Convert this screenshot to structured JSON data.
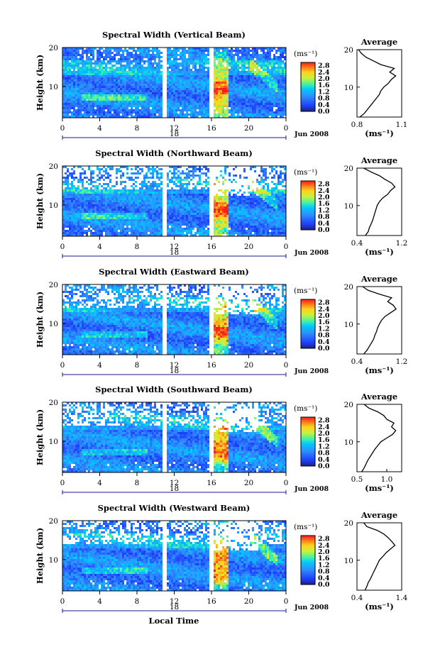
{
  "figure": {
    "y_label": "Height (km)",
    "x_label": "Local Time",
    "x_ticks": [
      "0",
      "4",
      "8",
      "12",
      "16",
      "20",
      "0"
    ],
    "y_ticks": [
      "20",
      "10"
    ],
    "date_label": "Jun 2008",
    "colorbar_unit": "(ms⁻¹)",
    "colorbar_ticks": [
      "2.8",
      "2.4",
      "2.0",
      "1.6",
      "1.2",
      "0.8",
      "0.4",
      "0.0"
    ],
    "avg_title": "Average",
    "avg_unit": "(ms⁻¹)"
  },
  "chart_data": [
    {
      "type": "heatmap",
      "title": "Spectral Width (Vertical Beam)",
      "xlabel": "",
      "ylabel": "Height (km)",
      "day_label": "18",
      "xlim": [
        0,
        24
      ],
      "ylim": [
        2,
        20
      ],
      "colorbar": {
        "label": "(ms⁻¹)",
        "range": [
          0.0,
          3.0
        ]
      },
      "average_profile": {
        "title": "Average",
        "xlabel": "(ms⁻¹)",
        "x_ticks": [
          "0.8",
          "1.1"
        ],
        "xlim": [
          0.8,
          1.1
        ],
        "height": [
          2,
          3,
          4,
          5,
          6,
          7,
          8,
          9,
          10,
          11,
          12,
          13,
          14,
          15,
          16,
          17,
          18,
          19,
          20
        ],
        "width": [
          0.82,
          0.85,
          0.87,
          0.89,
          0.91,
          0.93,
          0.95,
          0.96,
          0.98,
          1.01,
          1.03,
          1.06,
          1.02,
          1.05,
          0.96,
          0.91,
          0.86,
          0.83,
          0.81
        ]
      }
    },
    {
      "type": "heatmap",
      "title": "Spectral Width (Northward Beam)",
      "xlabel": "",
      "ylabel": "Height (km)",
      "day_label": "18",
      "xlim": [
        0,
        24
      ],
      "ylim": [
        2,
        20
      ],
      "colorbar": {
        "label": "(ms⁻¹)",
        "range": [
          0.0,
          3.0
        ]
      },
      "average_profile": {
        "title": "Average",
        "xlabel": "(ms⁻¹)",
        "x_ticks": [
          "0.4",
          "1.2"
        ],
        "xlim": [
          0.4,
          1.2
        ],
        "height": [
          2,
          3,
          4,
          5,
          6,
          7,
          8,
          9,
          10,
          11,
          12,
          13,
          14,
          15,
          16,
          17,
          18,
          19,
          20
        ],
        "width": [
          0.55,
          0.6,
          0.62,
          0.65,
          0.68,
          0.7,
          0.72,
          0.74,
          0.76,
          0.8,
          0.86,
          0.95,
          1.0,
          1.08,
          1.02,
          0.9,
          0.8,
          0.65,
          0.52
        ]
      }
    },
    {
      "type": "heatmap",
      "title": "Spectral Width (Eastward Beam)",
      "xlabel": "",
      "ylabel": "Height (km)",
      "day_label": "18",
      "xlim": [
        0,
        24
      ],
      "ylim": [
        2,
        20
      ],
      "colorbar": {
        "label": "(ms⁻¹)",
        "range": [
          0.0,
          3.0
        ]
      },
      "average_profile": {
        "title": "Average",
        "xlabel": "(ms⁻¹)",
        "x_ticks": [
          "0.4",
          "1.2"
        ],
        "xlim": [
          0.4,
          1.2
        ],
        "height": [
          2,
          3,
          4,
          5,
          6,
          7,
          8,
          9,
          10,
          11,
          12,
          13,
          14,
          15,
          16,
          17,
          18,
          19,
          20
        ],
        "width": [
          0.52,
          0.58,
          0.62,
          0.66,
          0.7,
          0.72,
          0.75,
          0.77,
          0.8,
          0.84,
          0.9,
          1.0,
          1.1,
          1.05,
          0.95,
          1.02,
          0.8,
          0.6,
          0.5
        ]
      }
    },
    {
      "type": "heatmap",
      "title": "Spectral Width (Southward Beam)",
      "xlabel": "",
      "ylabel": "Height (km)",
      "day_label": "18",
      "xlim": [
        0,
        24
      ],
      "ylim": [
        2,
        20
      ],
      "colorbar": {
        "label": "(ms⁻¹)",
        "range": [
          0.0,
          3.0
        ]
      },
      "average_profile": {
        "title": "Average",
        "xlabel": "(ms⁻¹)",
        "x_ticks": [
          "0.5",
          "1.0"
        ],
        "xlim": [
          0.5,
          1.25
        ],
        "height": [
          2,
          3,
          4,
          5,
          6,
          7,
          8,
          9,
          10,
          11,
          12,
          13,
          14,
          15,
          16,
          17,
          18,
          19,
          20
        ],
        "width": [
          0.58,
          0.62,
          0.65,
          0.68,
          0.72,
          0.76,
          0.8,
          0.85,
          0.9,
          1.0,
          1.1,
          1.15,
          1.08,
          1.12,
          1.0,
          0.95,
          0.85,
          0.7,
          0.62
        ]
      }
    },
    {
      "type": "heatmap",
      "title": "Spectral Width (Westward Beam)",
      "xlabel": "Local Time",
      "ylabel": "Height (km)",
      "day_label": "18",
      "xlim": [
        0,
        24
      ],
      "ylim": [
        2,
        20
      ],
      "colorbar": {
        "label": "(ms⁻¹)",
        "range": [
          0.0,
          3.0
        ]
      },
      "average_profile": {
        "title": "Average",
        "xlabel": "(ms⁻¹)",
        "x_ticks": [
          "0.4",
          "1.4"
        ],
        "xlim": [
          0.4,
          1.4
        ],
        "height": [
          2,
          3,
          4,
          5,
          6,
          7,
          8,
          9,
          10,
          11,
          12,
          13,
          14,
          15,
          16,
          17,
          18,
          19,
          20
        ],
        "width": [
          0.58,
          0.62,
          0.65,
          0.7,
          0.74,
          0.78,
          0.82,
          0.86,
          0.9,
          0.98,
          1.05,
          1.15,
          1.25,
          1.18,
          1.1,
          1.0,
          0.85,
          0.62,
          0.55
        ]
      }
    }
  ]
}
